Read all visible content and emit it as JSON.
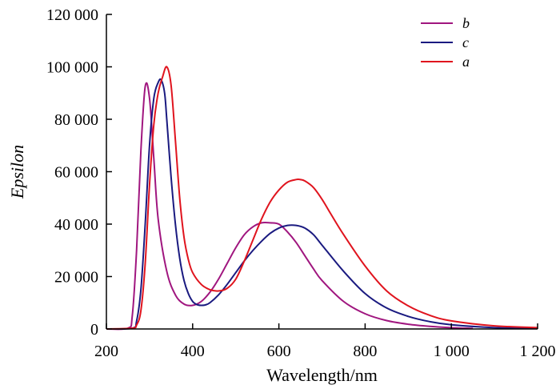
{
  "chart_data": {
    "type": "line",
    "xlabel": "Wavelength/nm",
    "ylabel": "Epsilon",
    "xlim": [
      200,
      1200
    ],
    "ylim": [
      0,
      120000
    ],
    "x_ticks": [
      200,
      400,
      600,
      800,
      1000,
      1200
    ],
    "x_tick_labels": [
      "200",
      "400",
      "600",
      "800",
      "1 000",
      "1 200"
    ],
    "y_ticks": [
      0,
      20000,
      40000,
      60000,
      80000,
      100000,
      120000
    ],
    "y_tick_labels": [
      "0",
      "20 000",
      "40 000",
      "60 000",
      "80 000",
      "100 000",
      "120 000"
    ],
    "grid": false,
    "legend_position": "top-right",
    "series": [
      {
        "name": "b",
        "color": "#a0167f",
        "x": [
          200,
          250,
          260,
          270,
          280,
          290,
          300,
          310,
          320,
          340,
          360,
          380,
          400,
          420,
          440,
          460,
          480,
          500,
          520,
          540,
          560,
          580,
          600,
          620,
          640,
          660,
          680,
          700,
          750,
          800,
          850,
          900,
          950,
          1000,
          1050
        ],
        "y": [
          0,
          300,
          5000,
          30000,
          68000,
          92500,
          88000,
          65000,
          42000,
          22000,
          13000,
          9500,
          9000,
          10500,
          14000,
          19000,
          25000,
          31000,
          36000,
          39000,
          40500,
          40500,
          40000,
          37000,
          33000,
          28000,
          23000,
          18500,
          10500,
          5800,
          3200,
          1800,
          1000,
          500,
          200
        ]
      },
      {
        "name": "c",
        "color": "#1a1a80",
        "x": [
          200,
          260,
          270,
          280,
          290,
          300,
          310,
          320,
          327,
          335,
          340,
          350,
          360,
          370,
          380,
          390,
          400,
          410,
          420,
          430,
          440,
          460,
          480,
          500,
          520,
          540,
          560,
          580,
          600,
          620,
          640,
          660,
          680,
          700,
          750,
          800,
          850,
          900,
          950,
          1000,
          1100,
          1200
        ],
        "y": [
          0,
          300,
          3000,
          15000,
          40000,
          70000,
          88000,
          94000,
          95000,
          90000,
          80000,
          58000,
          40000,
          27000,
          18500,
          13500,
          10500,
          9300,
          9000,
          9200,
          10000,
          13000,
          17000,
          21500,
          26000,
          30000,
          33500,
          36500,
          38500,
          39500,
          39500,
          38500,
          36000,
          32000,
          22000,
          13500,
          8000,
          4800,
          2800,
          1600,
          500,
          150
        ]
      },
      {
        "name": "a",
        "color": "#e0141e",
        "x": [
          200,
          260,
          270,
          280,
          290,
          300,
          310,
          320,
          330,
          340,
          350,
          360,
          370,
          380,
          390,
          400,
          420,
          440,
          460,
          480,
          500,
          520,
          540,
          560,
          580,
          600,
          620,
          640,
          650,
          660,
          680,
          700,
          720,
          750,
          800,
          850,
          900,
          950,
          1000,
          1100,
          1200
        ],
        "y": [
          0,
          300,
          1500,
          7000,
          25000,
          55000,
          78000,
          90000,
          96000,
          100000,
          93000,
          72000,
          50000,
          35000,
          26500,
          21500,
          17000,
          15000,
          14500,
          15500,
          19000,
          26000,
          34000,
          42000,
          48500,
          53000,
          56000,
          57000,
          57000,
          56500,
          54000,
          49500,
          44000,
          36000,
          24000,
          14500,
          8800,
          5200,
          3100,
          1200,
          500
        ]
      }
    ]
  }
}
